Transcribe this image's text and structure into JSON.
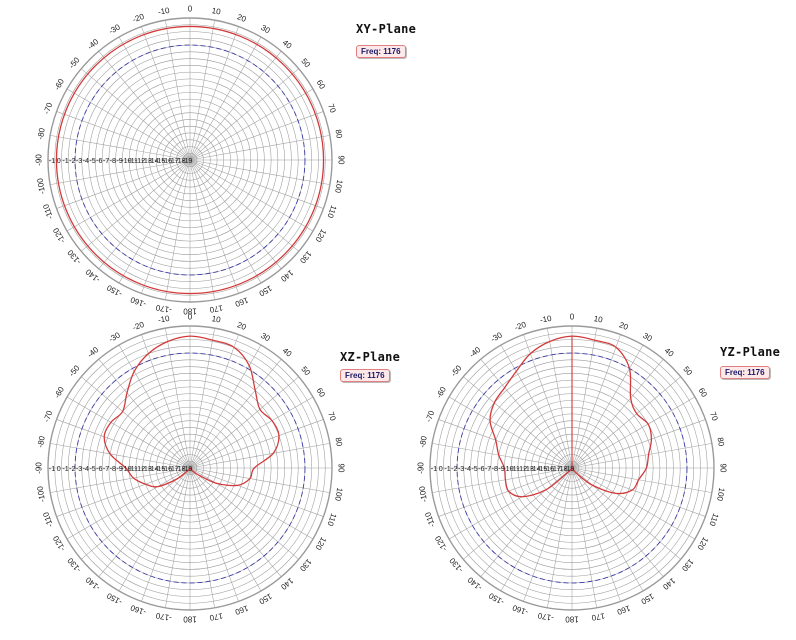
{
  "chart_data": [
    {
      "type": "polar",
      "title": "XY-Plane",
      "legend": "Freq: 1176",
      "angle_labels": [
        "0",
        "10",
        "20",
        "30",
        "40",
        "50",
        "60",
        "70",
        "80",
        "90",
        "100",
        "110",
        "120",
        "130",
        "140",
        "150",
        "160",
        "170",
        "180",
        "-170",
        "-160",
        "-150",
        "-140",
        "-130",
        "-120",
        "-110",
        "-100",
        "-90",
        "-80",
        "-70",
        "-60",
        "-50",
        "-40",
        "-30",
        "-20",
        "-10"
      ],
      "radial_labels": [
        "-1",
        "0",
        "-1",
        "-2",
        "-3",
        "-4",
        "-5",
        "-6",
        "-7",
        "-8",
        "-9",
        "-10",
        "-11",
        "-12",
        "-13",
        "-14",
        "-15",
        "-16",
        "-17",
        "-18",
        "-19"
      ],
      "radial_range": [
        -20,
        1
      ],
      "reference_circle_db": -3,
      "grid": true,
      "series": [
        {
          "angle_deg": [
            0,
            45,
            90,
            135,
            180,
            225,
            270,
            315
          ],
          "gain_db": [
            -0.2,
            -0.3,
            -0.2,
            -0.3,
            -0.2,
            -0.3,
            -0.2,
            -0.3
          ]
        }
      ]
    },
    {
      "type": "polar",
      "title": "XZ-Plane",
      "legend": "Freq: 1176",
      "angle_labels": [
        "0",
        "10",
        "20",
        "30",
        "40",
        "50",
        "60",
        "70",
        "80",
        "90",
        "100",
        "110",
        "120",
        "130",
        "140",
        "150",
        "160",
        "170",
        "180",
        "-170",
        "-160",
        "-150",
        "-140",
        "-130",
        "-120",
        "-110",
        "-100",
        "-90",
        "-80",
        "-70",
        "-60",
        "-50",
        "-40",
        "-30",
        "-20",
        "-10"
      ],
      "radial_labels": [
        "-1",
        "0",
        "-1",
        "-2",
        "-3",
        "-4",
        "-5",
        "-6",
        "-7",
        "-8",
        "-9",
        "-10",
        "-11",
        "-12",
        "-13",
        "-14",
        "-15",
        "-16",
        "-17",
        "-18",
        "-19"
      ],
      "radial_range": [
        -20,
        1
      ],
      "reference_circle_db": -3,
      "grid": true,
      "series": [
        {
          "angle_deg": [
            0,
            10,
            20,
            30,
            40,
            50,
            60,
            70,
            80,
            90,
            100,
            110,
            120,
            130,
            140,
            150,
            160,
            170,
            180,
            190,
            200,
            210,
            220,
            230,
            240,
            250,
            260,
            270,
            280,
            290,
            300,
            310,
            320,
            330,
            340,
            350
          ],
          "gain_db": [
            -0.5,
            -0.8,
            -1.0,
            -2.5,
            -5.0,
            -6.5,
            -6.0,
            -6.0,
            -7.5,
            -10.5,
            -11.0,
            -12.5,
            -15.5,
            -18.5,
            -19.5,
            -20.0,
            -20.0,
            -20.0,
            -20.0,
            -20.0,
            -20.0,
            -20.0,
            -19.5,
            -17.5,
            -14.5,
            -13.0,
            -11.5,
            -10.5,
            -8.0,
            -6.5,
            -6.5,
            -7.0,
            -5.5,
            -3.5,
            -2.0,
            -1.0
          ]
        }
      ]
    },
    {
      "type": "polar",
      "title": "YZ-Plane",
      "legend": "Freq: 1176",
      "angle_labels": [
        "0",
        "10",
        "20",
        "30",
        "40",
        "50",
        "60",
        "70",
        "80",
        "90",
        "100",
        "110",
        "120",
        "130",
        "140",
        "150",
        "160",
        "170",
        "180",
        "-170",
        "-160",
        "-150",
        "-140",
        "-130",
        "-120",
        "-110",
        "-100",
        "-90",
        "-80",
        "-70",
        "-60",
        "-50",
        "-40",
        "-30",
        "-20",
        "-10"
      ],
      "radial_labels": [
        "-1",
        "0",
        "-1",
        "-2",
        "-3",
        "-4",
        "-5",
        "-6",
        "-7",
        "-8",
        "-9",
        "-10",
        "-11",
        "-12",
        "-13",
        "-14",
        "-15",
        "-16",
        "-17",
        "-18",
        "-19"
      ],
      "radial_range": [
        -20,
        1
      ],
      "reference_circle_db": -3,
      "grid": true,
      "series": [
        {
          "angle_deg": [
            0,
            10,
            20,
            30,
            40,
            50,
            60,
            70,
            80,
            90,
            100,
            110,
            120,
            130,
            140,
            150,
            160,
            170,
            180,
            190,
            200,
            210,
            220,
            230,
            240,
            250,
            260,
            270,
            280,
            290,
            300,
            310,
            320,
            330,
            340,
            350
          ],
          "gain_db": [
            -0.5,
            -0.8,
            -1.0,
            -3.0,
            -6.5,
            -7.5,
            -7.0,
            -7.5,
            -8.5,
            -9.0,
            -10.0,
            -10.5,
            -12.5,
            -16.0,
            -19.0,
            -20.0,
            -20.0,
            -20.0,
            -20.0,
            -20.0,
            -20.0,
            -20.0,
            -19.5,
            -15.0,
            -11.5,
            -10.0,
            -10.0,
            -10.0,
            -9.0,
            -8.0,
            -6.0,
            -5.0,
            -4.5,
            -3.5,
            -2.0,
            -1.0
          ]
        }
      ]
    }
  ]
}
